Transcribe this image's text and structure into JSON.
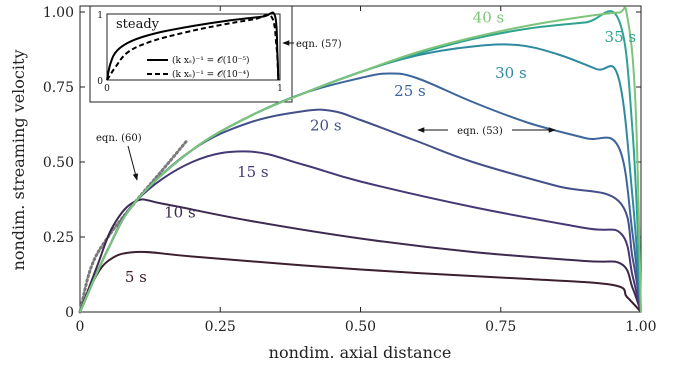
{
  "chart_data": {
    "type": "line",
    "xlabel": "nondim. axial distance",
    "ylabel": "nondim. streaming velocity",
    "xlim": [
      0,
      1
    ],
    "ylim": [
      0,
      1.02
    ],
    "x_ticks": [
      "0",
      "0.25",
      "0.50",
      "0.75",
      "1.00"
    ],
    "y_ticks": [
      "0",
      "0.25",
      "0.50",
      "0.75",
      "1.00"
    ],
    "grid": false,
    "series": [
      {
        "name": "5 s",
        "color": "#3b1f2e",
        "label_at": [
          0.08,
          0.1
        ],
        "points": [
          [
            0,
            0
          ],
          [
            0.02,
            0.09
          ],
          [
            0.05,
            0.17
          ],
          [
            0.1,
            0.2
          ],
          [
            0.2,
            0.185
          ],
          [
            0.4,
            0.155
          ],
          [
            0.6,
            0.13
          ],
          [
            0.8,
            0.11
          ],
          [
            0.95,
            0.09
          ],
          [
            0.975,
            0.05
          ],
          [
            1,
            0
          ]
        ]
      },
      {
        "name": "10 s",
        "color": "#3d2a4f",
        "label_at": [
          0.15,
          0.315
        ],
        "points": [
          [
            0,
            0
          ],
          [
            0.03,
            0.15
          ],
          [
            0.06,
            0.29
          ],
          [
            0.1,
            0.37
          ],
          [
            0.15,
            0.36
          ],
          [
            0.3,
            0.305
          ],
          [
            0.5,
            0.245
          ],
          [
            0.7,
            0.2
          ],
          [
            0.9,
            0.17
          ],
          [
            0.965,
            0.16
          ],
          [
            0.985,
            0.08
          ],
          [
            1,
            0
          ]
        ]
      },
      {
        "name": "15 s",
        "color": "#463775",
        "label_at": [
          0.28,
          0.45
        ],
        "points": [
          [
            0,
            0
          ],
          [
            0.05,
            0.21
          ],
          [
            0.1,
            0.37
          ],
          [
            0.2,
            0.5
          ],
          [
            0.3,
            0.535
          ],
          [
            0.4,
            0.49
          ],
          [
            0.5,
            0.435
          ],
          [
            0.7,
            0.35
          ],
          [
            0.9,
            0.28
          ],
          [
            0.965,
            0.26
          ],
          [
            0.985,
            0.12
          ],
          [
            1,
            0
          ]
        ]
      },
      {
        "name": "20 s",
        "color": "#44508a",
        "label_at": [
          0.41,
          0.605
        ],
        "points": [
          [
            0,
            0
          ],
          [
            0.05,
            0.21
          ],
          [
            0.1,
            0.37
          ],
          [
            0.2,
            0.54
          ],
          [
            0.3,
            0.63
          ],
          [
            0.4,
            0.67
          ],
          [
            0.45,
            0.67
          ],
          [
            0.5,
            0.64
          ],
          [
            0.6,
            0.57
          ],
          [
            0.7,
            0.5
          ],
          [
            0.85,
            0.42
          ],
          [
            0.96,
            0.37
          ],
          [
            0.985,
            0.18
          ],
          [
            1,
            0
          ]
        ]
      },
      {
        "name": "25 s",
        "color": "#3c669a",
        "label_at": [
          0.56,
          0.72
        ],
        "points": [
          [
            0,
            0
          ],
          [
            0.05,
            0.21
          ],
          [
            0.1,
            0.37
          ],
          [
            0.2,
            0.54
          ],
          [
            0.3,
            0.65
          ],
          [
            0.4,
            0.73
          ],
          [
            0.5,
            0.78
          ],
          [
            0.55,
            0.795
          ],
          [
            0.6,
            0.78
          ],
          [
            0.7,
            0.7
          ],
          [
            0.8,
            0.63
          ],
          [
            0.9,
            0.58
          ],
          [
            0.96,
            0.55
          ],
          [
            0.985,
            0.26
          ],
          [
            1,
            0
          ]
        ]
      },
      {
        "name": "30 s",
        "color": "#2f8aa0",
        "label_at": [
          0.74,
          0.78
        ],
        "points": [
          [
            0,
            0
          ],
          [
            0.05,
            0.21
          ],
          [
            0.1,
            0.37
          ],
          [
            0.2,
            0.54
          ],
          [
            0.3,
            0.65
          ],
          [
            0.4,
            0.73
          ],
          [
            0.5,
            0.8
          ],
          [
            0.6,
            0.855
          ],
          [
            0.7,
            0.885
          ],
          [
            0.78,
            0.89
          ],
          [
            0.85,
            0.86
          ],
          [
            0.92,
            0.81
          ],
          [
            0.96,
            0.78
          ],
          [
            0.985,
            0.38
          ],
          [
            1,
            0
          ]
        ]
      },
      {
        "name": "35 s",
        "color": "#2ea38f",
        "label_at": [
          0.935,
          0.9
        ],
        "points": [
          [
            0,
            0
          ],
          [
            0.05,
            0.21
          ],
          [
            0.1,
            0.37
          ],
          [
            0.2,
            0.54
          ],
          [
            0.3,
            0.65
          ],
          [
            0.4,
            0.73
          ],
          [
            0.5,
            0.8
          ],
          [
            0.6,
            0.86
          ],
          [
            0.7,
            0.91
          ],
          [
            0.8,
            0.945
          ],
          [
            0.9,
            0.965
          ],
          [
            0.96,
            0.975
          ],
          [
            0.985,
            0.6
          ],
          [
            1,
            0
          ]
        ]
      },
      {
        "name": "40 s",
        "color": "#7dc47a",
        "label_at": [
          0.7,
          0.965
        ],
        "points": [
          [
            0,
            0
          ],
          [
            0.05,
            0.21
          ],
          [
            0.1,
            0.37
          ],
          [
            0.2,
            0.54
          ],
          [
            0.3,
            0.65
          ],
          [
            0.4,
            0.73
          ],
          [
            0.5,
            0.8
          ],
          [
            0.6,
            0.865
          ],
          [
            0.7,
            0.915
          ],
          [
            0.8,
            0.955
          ],
          [
            0.9,
            0.985
          ],
          [
            0.96,
            0.998
          ],
          [
            0.975,
            0.99
          ],
          [
            0.99,
            0.7
          ],
          [
            1,
            0
          ]
        ]
      }
    ],
    "reference": {
      "label": "eqn. (60)",
      "color": "#7a7a7a",
      "points": [
        [
          0,
          0
        ],
        [
          0.02,
          0.15
        ],
        [
          0.05,
          0.25
        ],
        [
          0.1,
          0.37
        ],
        [
          0.15,
          0.48
        ],
        [
          0.19,
          0.57
        ]
      ]
    },
    "annotations": [
      {
        "text": "eqn. (53)"
      },
      {
        "text": "eqn. (57)"
      }
    ],
    "inset": {
      "title": "steady",
      "x_ticks": [
        "0",
        "1"
      ],
      "y_ticks": [
        "0",
        "1"
      ],
      "legend": [
        {
          "text": "(k xₛ)⁻¹ = 𝒪(10⁻⁵)",
          "style": "solid"
        },
        {
          "text": "(k xₛ)⁻¹ = 𝒪(10⁻⁴)",
          "style": "dashed"
        }
      ],
      "series": [
        {
          "style": "solid",
          "points": [
            [
              0,
              0
            ],
            [
              0.02,
              0.25
            ],
            [
              0.06,
              0.45
            ],
            [
              0.15,
              0.6
            ],
            [
              0.3,
              0.72
            ],
            [
              0.5,
              0.82
            ],
            [
              0.7,
              0.9
            ],
            [
              0.9,
              0.96
            ],
            [
              0.97,
              0.98
            ],
            [
              0.985,
              0.4
            ],
            [
              0.99,
              0
            ]
          ]
        },
        {
          "style": "dashed",
          "points": [
            [
              0,
              0
            ],
            [
              0.05,
              0.2
            ],
            [
              0.12,
              0.42
            ],
            [
              0.25,
              0.58
            ],
            [
              0.45,
              0.72
            ],
            [
              0.65,
              0.83
            ],
            [
              0.85,
              0.92
            ],
            [
              0.95,
              0.96
            ],
            [
              0.98,
              0.5
            ],
            [
              0.99,
              0
            ]
          ]
        }
      ]
    }
  }
}
